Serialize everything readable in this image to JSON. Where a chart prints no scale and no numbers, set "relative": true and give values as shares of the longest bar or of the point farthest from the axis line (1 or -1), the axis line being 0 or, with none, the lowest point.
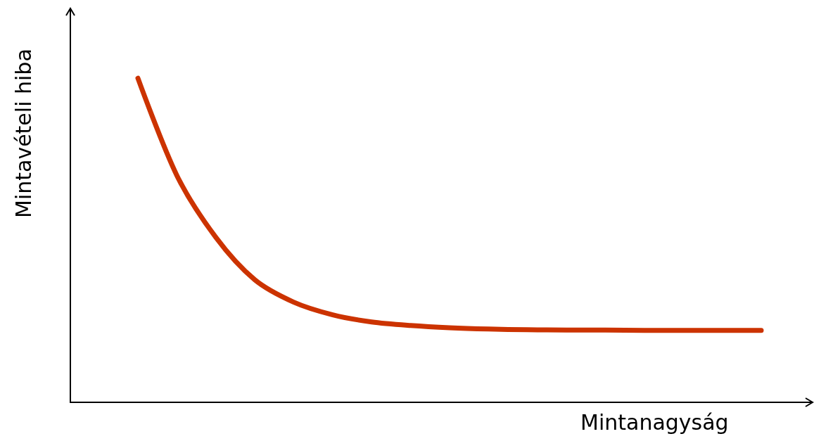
{
  "chart_data": {
    "type": "line",
    "xlabel": "Mintanagyság",
    "ylabel": "Mintavételi hiba",
    "relative": true,
    "categories": [
      null,
      null,
      null,
      null,
      null,
      null,
      null,
      null,
      null,
      null,
      null,
      null,
      null,
      null,
      null,
      null,
      null
    ],
    "series": [
      {
        "color": "#cc3300",
        "values": [
          1.0,
          0.7,
          0.509,
          0.378,
          0.309,
          0.27,
          0.248,
          0.237,
          0.23,
          0.226,
          0.224,
          0.223,
          0.223,
          0.222,
          0.222,
          0.222,
          0.222
        ]
      }
    ]
  }
}
